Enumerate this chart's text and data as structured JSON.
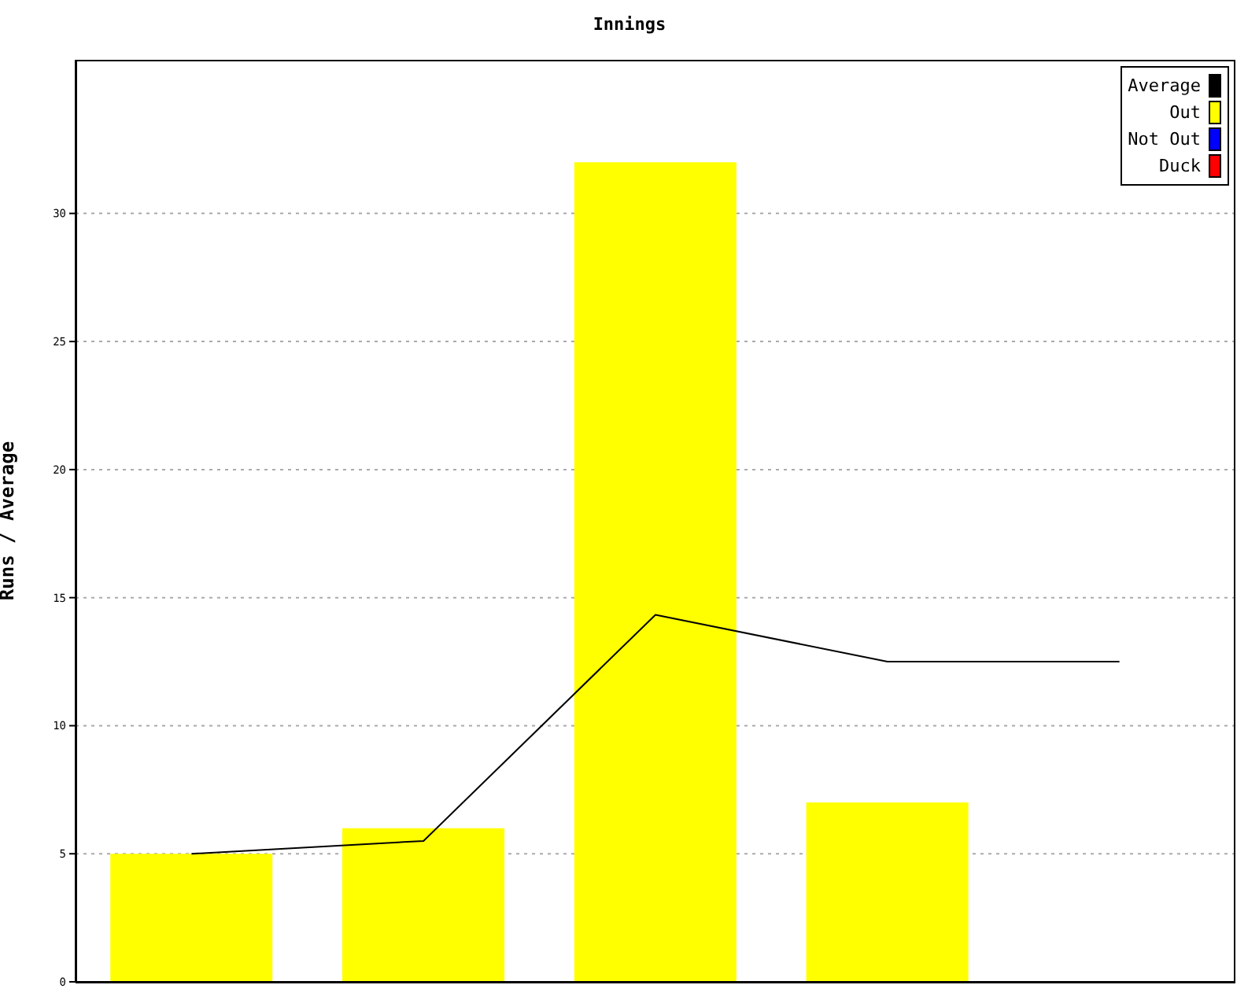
{
  "chart_data": {
    "type": "bar",
    "title": "Innings",
    "ylabel": "Runs / Average",
    "categories": [
      null,
      null,
      null,
      null,
      null
    ],
    "series": [
      {
        "name": "Average",
        "type": "line",
        "color": "#000000",
        "values": [
          5,
          5.5,
          14.33,
          12.5,
          12.5
        ]
      },
      {
        "name": "Out",
        "color": "#ffff00",
        "values": [
          5,
          6,
          32,
          7,
          null
        ]
      },
      {
        "name": "Not Out",
        "color": "#0000ff",
        "values": [
          null,
          null,
          null,
          null,
          null
        ]
      },
      {
        "name": "Duck",
        "color": "#ff0000",
        "values": [
          null,
          null,
          null,
          null,
          null
        ]
      }
    ],
    "stacked": true,
    "ylim": [
      0,
      36
    ],
    "yticks": [
      0,
      5,
      10,
      15,
      20,
      25,
      30
    ],
    "grid": "y",
    "legend": "top right",
    "tick_labels": "y",
    "marker": "none",
    "line_style": "solid"
  }
}
